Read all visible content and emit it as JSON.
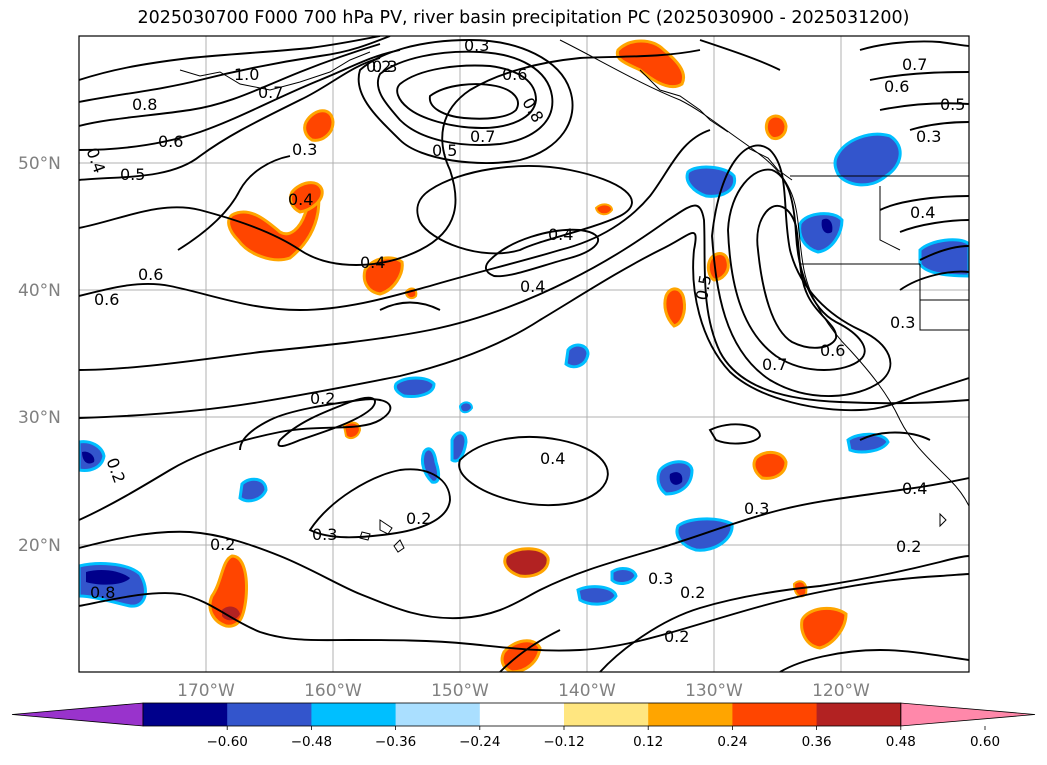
{
  "title": "2025030700 F000 700 hPa PV, river basin precipitation PC (2025030900 - 2025031200)",
  "axes": {
    "lat_labels": [
      "50°N",
      "40°N",
      "30°N",
      "20°N"
    ],
    "lon_labels": [
      "170°W",
      "160°W",
      "150°W",
      "140°W",
      "130°W",
      "120°W"
    ]
  },
  "contour_labels": [
    "0.3",
    "0.6",
    "0.8",
    "0.7",
    "0.5",
    "0.2",
    "1.0",
    "0.7",
    "0.8",
    "0.6",
    "0.4",
    "0.5",
    "0.3",
    "0.4",
    "0.6",
    "0.6",
    "0.4",
    "0.4",
    "0.5",
    "0.7",
    "0.6",
    "0.3",
    "0.2",
    "0.4",
    "0.2",
    "0.2",
    "0.3",
    "0.2",
    "0.4",
    "0.3",
    "0.3",
    "0.2",
    "0.2",
    "0.4",
    "0.7",
    "0.6",
    "0.5",
    "0.3",
    "0.4",
    "0.8",
    "0.2",
    "0.3"
  ],
  "colorbar": {
    "ticks": [
      "−0.60",
      "−0.48",
      "−0.36",
      "−0.24",
      "−0.12",
      "0.12",
      "0.24",
      "0.36",
      "0.48",
      "0.60"
    ],
    "colors": [
      "#9933cc",
      "#00008b",
      "#3355cc",
      "#00bfff",
      "#aadfff",
      "#ffffff",
      "#ffe680",
      "#ffa500",
      "#ff4500",
      "#b22222",
      "#ff88aa"
    ]
  }
}
